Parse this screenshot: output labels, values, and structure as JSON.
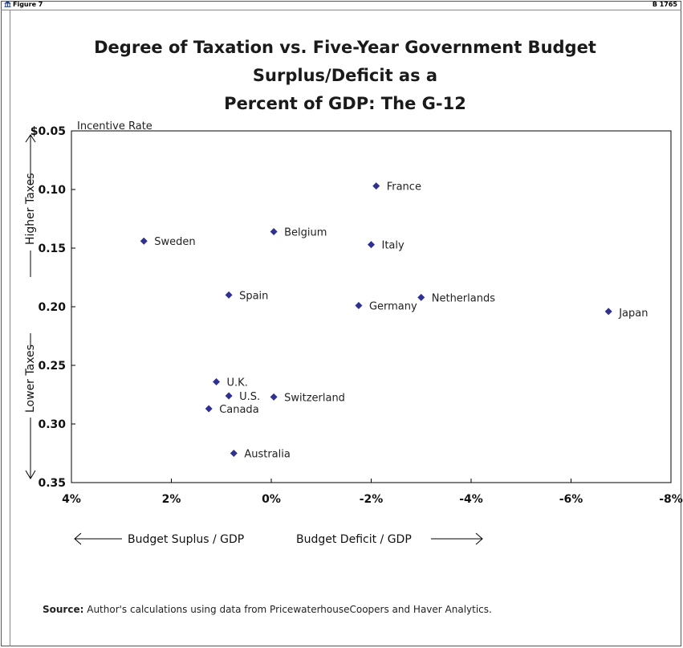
{
  "header": {
    "figure_label": "Figure 7",
    "report_id": "B 1765"
  },
  "title_line1": "Degree of Taxation vs. Five-Year Government Budget Surplus/Deficit as a",
  "title_line2": "Percent of GDP: The G-12",
  "source_label": "Source:",
  "source_text": "Author's calculations using data from PricewaterhouseCoopers and Haver Analytics.",
  "colors": {
    "marker": "#2e3192",
    "axis": "#000000",
    "frame": "#555555"
  },
  "chart_data": {
    "type": "scatter",
    "title": "Degree of Taxation vs. Five-Year Government Budget Surplus/Deficit as a Percent of GDP: The G-12",
    "ylabel_top": "Incentive Rate",
    "y_arrow_up_label": "Higher Taxes",
    "y_arrow_down_label": "Lower Taxes",
    "x_arrow_left_label": "Budget Suplus / GDP",
    "x_arrow_right_label": "Budget Deficit / GDP",
    "xlim": [
      4,
      -8
    ],
    "ylim": [
      0.35,
      0.05
    ],
    "y_inverted": true,
    "x_reversed": true,
    "x_ticks": [
      {
        "value": 4,
        "label": "4%"
      },
      {
        "value": 2,
        "label": "2%"
      },
      {
        "value": 0,
        "label": "0%"
      },
      {
        "value": -2,
        "label": "-2%"
      },
      {
        "value": -4,
        "label": "-4%"
      },
      {
        "value": -6,
        "label": "-6%"
      },
      {
        "value": -8,
        "label": "-8%"
      }
    ],
    "y_ticks": [
      {
        "value": 0.05,
        "label": "$0.05"
      },
      {
        "value": 0.1,
        "label": "0.10"
      },
      {
        "value": 0.15,
        "label": "0.15"
      },
      {
        "value": 0.2,
        "label": "0.20"
      },
      {
        "value": 0.25,
        "label": "0.25"
      },
      {
        "value": 0.3,
        "label": "0.30"
      },
      {
        "value": 0.35,
        "label": "0.35"
      }
    ],
    "grid": false,
    "points": [
      {
        "label": "France",
        "x": -2.1,
        "y": 0.097
      },
      {
        "label": "Belgium",
        "x": -0.05,
        "y": 0.136
      },
      {
        "label": "Sweden",
        "x": 2.55,
        "y": 0.144
      },
      {
        "label": "Italy",
        "x": -2.0,
        "y": 0.147
      },
      {
        "label": "Spain",
        "x": 0.85,
        "y": 0.19
      },
      {
        "label": "Netherlands",
        "x": -3.0,
        "y": 0.192
      },
      {
        "label": "Germany",
        "x": -1.75,
        "y": 0.199
      },
      {
        "label": "Japan",
        "x": -6.75,
        "y": 0.204
      },
      {
        "label": "U.K.",
        "x": 1.1,
        "y": 0.264
      },
      {
        "label": "U.S.",
        "x": 0.85,
        "y": 0.276
      },
      {
        "label": "Switzerland",
        "x": -0.05,
        "y": 0.277
      },
      {
        "label": "Canada",
        "x": 1.25,
        "y": 0.287
      },
      {
        "label": "Australia",
        "x": 0.75,
        "y": 0.325
      }
    ]
  }
}
